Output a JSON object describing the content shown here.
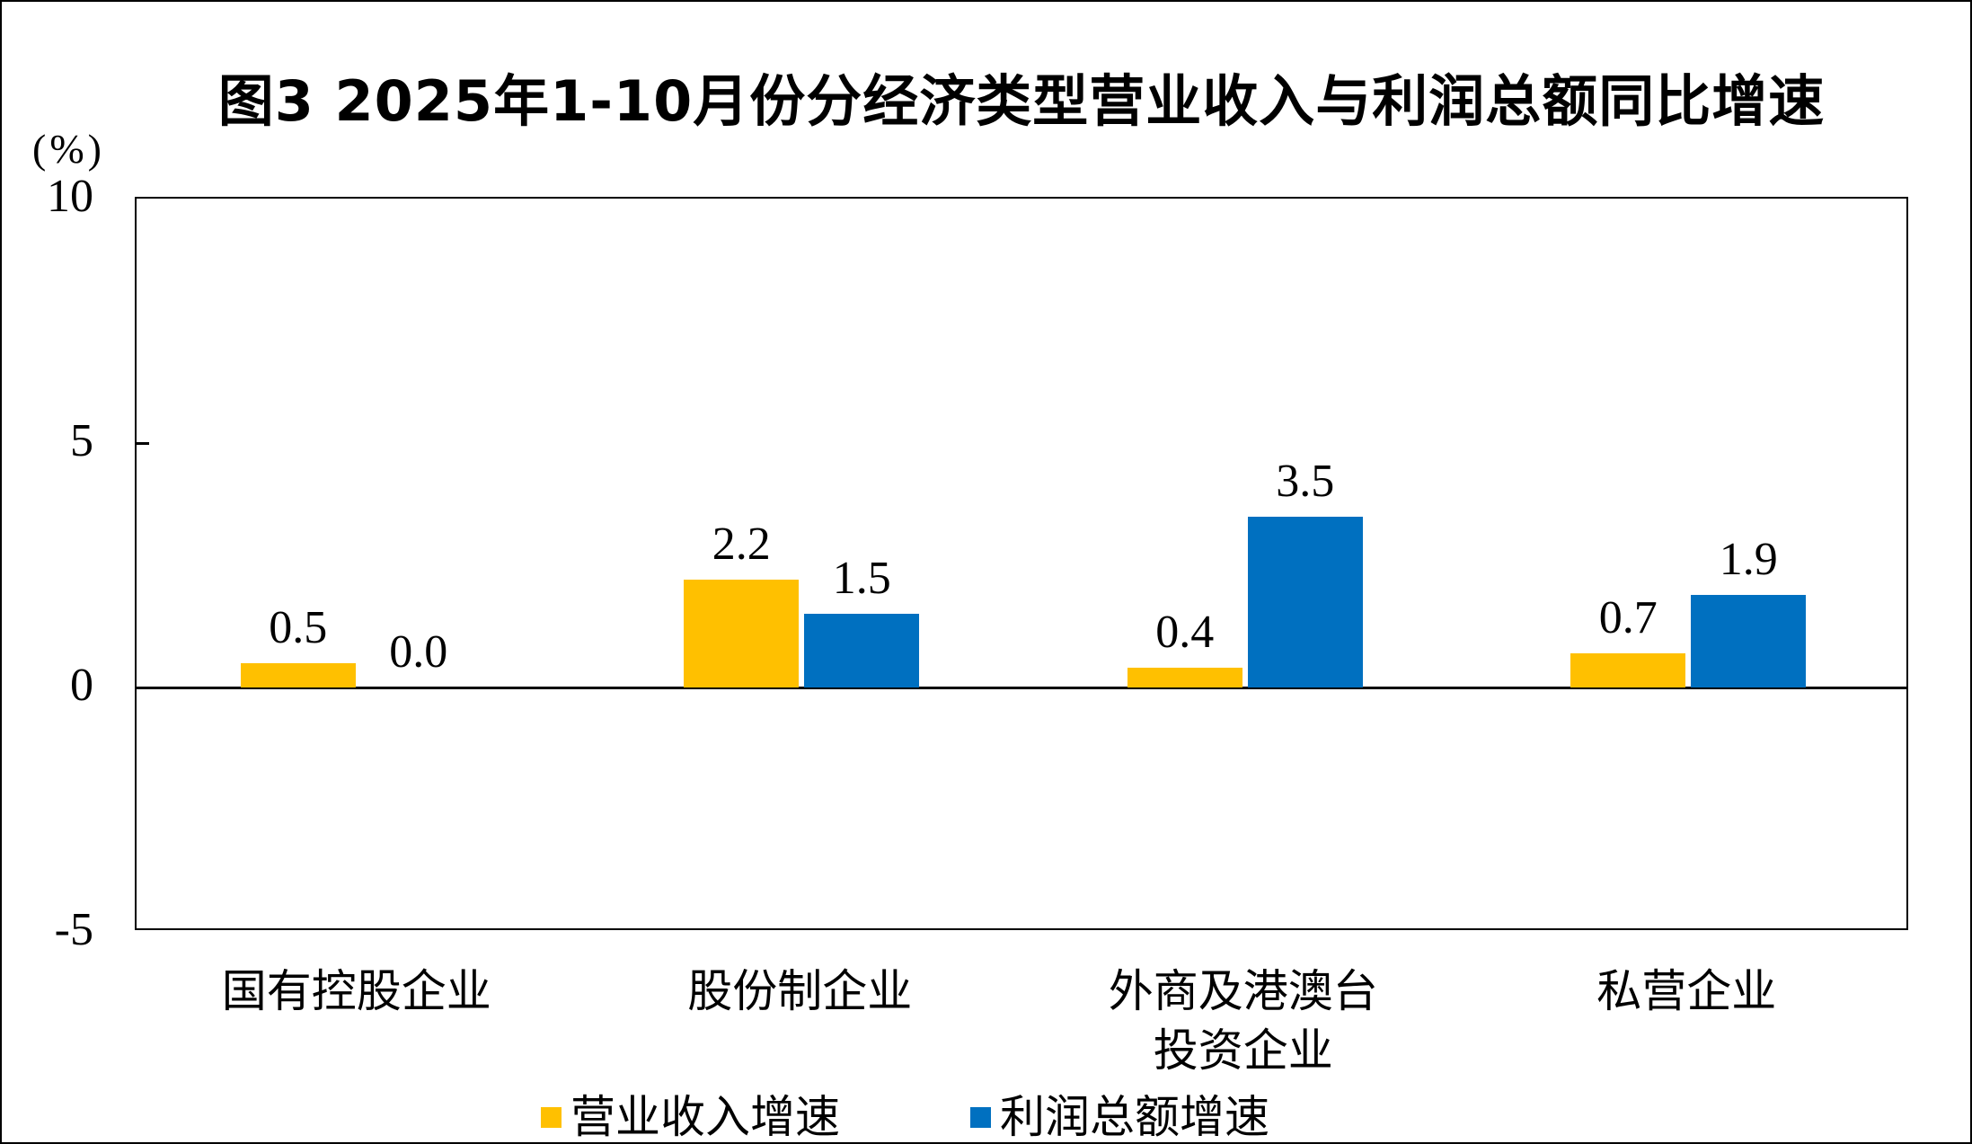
{
  "title": "图3 2025年1-10月份分经济类型营业收入与利润总额同比增速",
  "y_axis": {
    "unit_label": "(%)",
    "tick_labels": [
      "10",
      "5",
      "0",
      "-5"
    ]
  },
  "chart_data": {
    "type": "bar",
    "title": "图3 2025年1-10月份分经济类型营业收入与利润总额同比增速",
    "unit": "%",
    "categories": [
      "国有控股企业",
      "股份制企业",
      "外商及港澳台投资企业",
      "私营企业"
    ],
    "categories_display": [
      [
        "国有控股企业"
      ],
      [
        "股份制企业"
      ],
      [
        "外商及港澳台",
        "投资企业"
      ],
      [
        "私营企业"
      ]
    ],
    "series": [
      {
        "name": "营业收入增速",
        "color": "#FFC000",
        "values": [
          0.5,
          2.2,
          0.4,
          0.7
        ]
      },
      {
        "name": "利润总额增速",
        "color": "#0070C0",
        "values": [
          0.0,
          1.5,
          3.5,
          1.9
        ]
      }
    ],
    "ylim": [
      -5,
      10
    ],
    "yticks": [
      10,
      5,
      0,
      -5
    ],
    "grid": false,
    "legend_position": "bottom",
    "value_labels": true,
    "value_label_decimals": 1,
    "background": "#FFFFFF",
    "axis_color": "#000000"
  }
}
